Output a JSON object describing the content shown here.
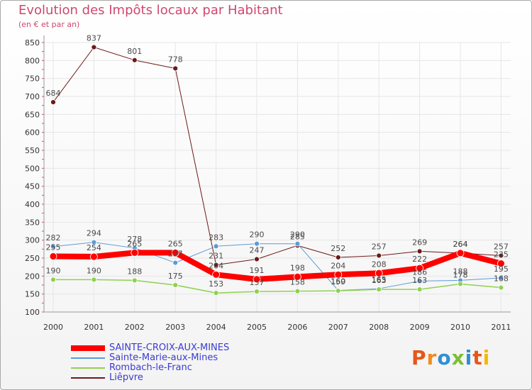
{
  "chart_data": {
    "type": "line",
    "title": "Evolution des Impôts locaux par Habitant",
    "subtitle": "(en € et par an)",
    "categories": [
      "2000",
      "2001",
      "2002",
      "2003",
      "2004",
      "2005",
      "2006",
      "2007",
      "2008",
      "2009",
      "2010",
      "2011"
    ],
    "ylim": [
      100,
      850
    ],
    "yticks": [
      100,
      150,
      200,
      250,
      300,
      350,
      400,
      450,
      500,
      550,
      600,
      650,
      700,
      750,
      800,
      850
    ],
    "ytick_labels": [
      "100",
      "150",
      "200",
      "250",
      "300",
      "350",
      "400",
      "450",
      "500",
      "550",
      "600",
      "650",
      "700",
      "750",
      "800",
      "850"
    ],
    "grid": true,
    "series": [
      {
        "name": "Liêpvre",
        "color": "#6b1a1a",
        "values": [
          684,
          837,
          801,
          778,
          231,
          247,
          285,
          252,
          257,
          269,
          264,
          257
        ],
        "labels": [
          "684",
          "837",
          "801",
          "778",
          "231",
          "247",
          "285",
          "252",
          "257",
          "269",
          "264",
          "257"
        ]
      },
      {
        "name": "Sainte-Marie-aux-Mines",
        "color": "#5b9bd5",
        "values": [
          282,
          294,
          278,
          237,
          283,
          290,
          290,
          160,
          165,
          186,
          188,
          195
        ],
        "labels": [
          "282",
          "294",
          "278",
          "237",
          "283",
          "290",
          "290",
          "160",
          "165",
          "186",
          "188",
          "195"
        ]
      },
      {
        "name": "Rombach-le-Franc",
        "color": "#8fd14f",
        "values": [
          190,
          190,
          188,
          175,
          153,
          157,
          158,
          159,
          163,
          163,
          178,
          168
        ],
        "labels": [
          "190",
          "190",
          "188",
          "175",
          "153",
          "157",
          "158",
          "159",
          "163",
          "163",
          "178",
          "168"
        ]
      },
      {
        "name": "SAINTE-CROIX-AUX-MINES",
        "color": "#ff0000",
        "values": [
          255,
          254,
          265,
          265,
          204,
          191,
          198,
          204,
          208,
          222,
          264,
          235
        ],
        "labels": [
          "255",
          "254",
          "265",
          "265",
          "204",
          "191",
          "198",
          "204",
          "208",
          "222",
          "264",
          "235"
        ]
      }
    ]
  },
  "legend": {
    "items": [
      {
        "name": "SAINTE-CROIX-AUX-MINES",
        "color": "#ff0000"
      },
      {
        "name": "Sainte-Marie-aux-Mines",
        "color": "#5b9bd5"
      },
      {
        "name": "Rombach-le-Franc",
        "color": "#8fd14f"
      },
      {
        "name": "Liêpvre",
        "color": "#6b1a1a"
      }
    ]
  },
  "logo": {
    "text": "Proxiti"
  },
  "colors": {
    "title": "#d0476f",
    "legend_text": "#3b3bd0"
  }
}
